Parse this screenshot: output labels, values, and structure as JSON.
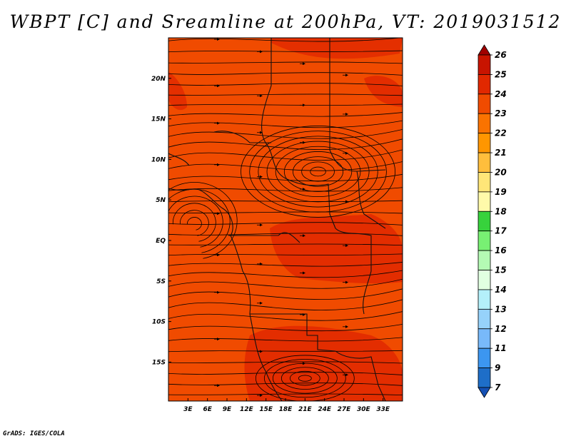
{
  "title": "WBPT [C] and Sreamline at 200hPa, VT: 2019031512",
  "credit": "GrADS: IGES/COLA",
  "map": {
    "variable": "WBPT",
    "units": "C",
    "level": "200hPa",
    "overlay": "Streamlines",
    "valid_time": "2019031512",
    "lon_labels": [
      "3E",
      "6E",
      "9E",
      "12E",
      "15E",
      "18E",
      "21E",
      "24E",
      "27E",
      "30E",
      "33E"
    ],
    "lat_labels": [
      "20N",
      "15N",
      "10N",
      "5N",
      "EQ",
      "5S",
      "10S",
      "15S"
    ]
  },
  "colorbar": {
    "levels": [
      "26",
      "25",
      "24",
      "23",
      "22",
      "21",
      "20",
      "19",
      "18",
      "17",
      "16",
      "15",
      "14",
      "13",
      "12",
      "11",
      "9",
      "7"
    ],
    "colors": [
      "#a00000",
      "#c81400",
      "#e12800",
      "#f04b00",
      "#fa7300",
      "#ff9600",
      "#ffbe3c",
      "#ffe678",
      "#fffaaa",
      "#37d23c",
      "#78f073",
      "#b4fab4",
      "#e1ffe1",
      "#b4f0fa",
      "#96d2fa",
      "#78b9fa",
      "#3c96f0",
      "#1e6ec8",
      "#1450b4"
    ]
  }
}
